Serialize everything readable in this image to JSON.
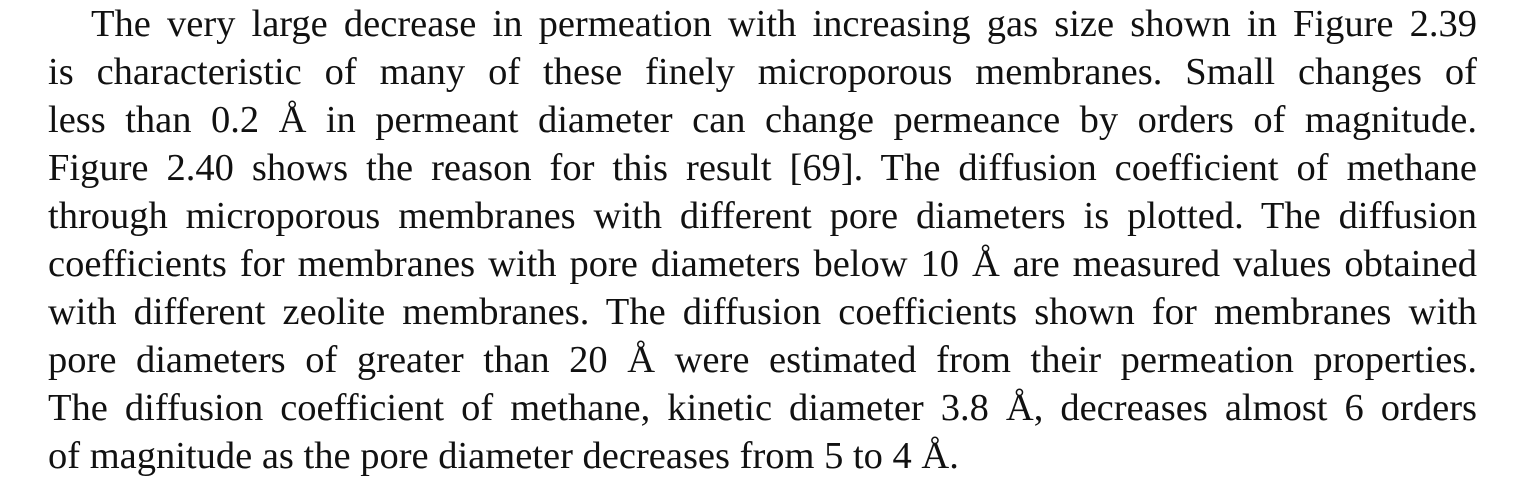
{
  "paragraph": {
    "lines": [
      "The very large decrease in permeation with increasing gas size shown in Figure 2.39",
      "is characteristic of many of these finely microporous membranes. Small changes of",
      "less than 0.2 Å in permeant diameter can change permeance by orders of magnitude.",
      "Figure 2.40 shows the reason for this result [69]. The diffusion coefficient of methane",
      "through microporous membranes with different pore diameters is plotted. The diffusion",
      "coefficients for membranes with pore diameters below 10 Å are measured values obtained",
      "with different zeolite membranes. The diffusion coefficients shown for membranes with",
      "pore diameters of greater than 20 Å were estimated from their permeation properties.",
      "The diffusion coefficient of methane, kinetic diameter 3.8 Å, decreases almost 6 orders",
      "of magnitude as the pore diameter decreases from 5 to 4 Å."
    ]
  }
}
